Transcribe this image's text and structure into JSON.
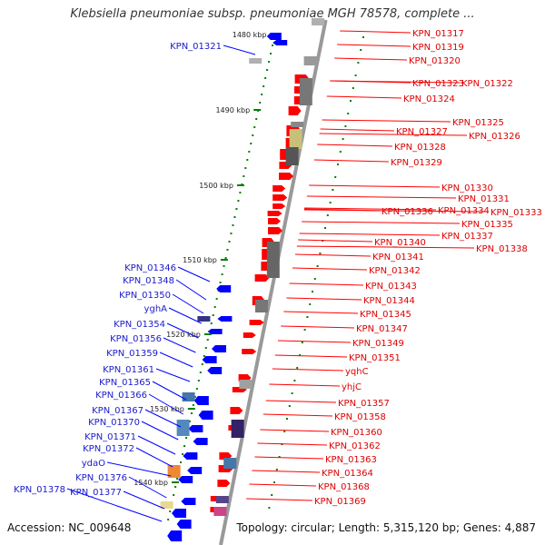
{
  "title": "Klebsiella pneumoniae subsp. pneumoniae MGH 78578, complete ...",
  "footer": {
    "accession": "Accession: NC_009648",
    "summary": "Topology: circular; Length: 5,315,120 bp; Genes: 4,887"
  },
  "colors": {
    "forward": "#ff0000",
    "reverse": "#0000ff",
    "backbone": "#999999",
    "tick": "#008000"
  },
  "scale_ticks": [
    {
      "label": "1480 kbp"
    },
    {
      "label": "1490 kbp"
    },
    {
      "label": "1500 kbp"
    },
    {
      "label": "1510 kbp"
    },
    {
      "label": "1520 kbp"
    },
    {
      "label": "1530 kbp"
    },
    {
      "label": "1540 kbp"
    }
  ],
  "forward_genes": [
    {
      "label": "KPN_01317"
    },
    {
      "label": "KPN_01319"
    },
    {
      "label": "KPN_01320"
    },
    {
      "label": "KPN_01322"
    },
    {
      "label": "KPN_01323"
    },
    {
      "label": "KPN_01324"
    },
    {
      "label": "KPN_01325"
    },
    {
      "label": "KPN_01326"
    },
    {
      "label": "KPN_01327"
    },
    {
      "label": "KPN_01328"
    },
    {
      "label": "KPN_01329"
    },
    {
      "label": "KPN_01330"
    },
    {
      "label": "KPN_01331"
    },
    {
      "label": "KPN_01334"
    },
    {
      "label": "KPN_01333"
    },
    {
      "label": "KPN_01336"
    },
    {
      "label": "KPN_01335"
    },
    {
      "label": "KPN_01337"
    },
    {
      "label": "KPN_01338"
    },
    {
      "label": "KPN_01340"
    },
    {
      "label": "KPN_01341"
    },
    {
      "label": "KPN_01342"
    },
    {
      "label": "KPN_01343"
    },
    {
      "label": "KPN_01344"
    },
    {
      "label": "KPN_01345"
    },
    {
      "label": "KPN_01347"
    },
    {
      "label": "KPN_01349"
    },
    {
      "label": "KPN_01351"
    },
    {
      "label": "yqhC"
    },
    {
      "label": "yhjC"
    },
    {
      "label": "KPN_01357"
    },
    {
      "label": "KPN_01358"
    },
    {
      "label": "KPN_01360"
    },
    {
      "label": "KPN_01362"
    },
    {
      "label": "KPN_01363"
    },
    {
      "label": "KPN_01364"
    },
    {
      "label": "KPN_01368"
    },
    {
      "label": "KPN_01369"
    }
  ],
  "reverse_genes": [
    {
      "label": "KPN_01321"
    },
    {
      "label": "KPN_01346"
    },
    {
      "label": "KPN_01348"
    },
    {
      "label": "KPN_01350"
    },
    {
      "label": "yghA"
    },
    {
      "label": "KPN_01354"
    },
    {
      "label": "KPN_01356"
    },
    {
      "label": "KPN_01359"
    },
    {
      "label": "KPN_01361"
    },
    {
      "label": "KPN_01365"
    },
    {
      "label": "KPN_01366"
    },
    {
      "label": "KPN_01367"
    },
    {
      "label": "KPN_01370"
    },
    {
      "label": "KPN_01371"
    },
    {
      "label": "KPN_01372"
    },
    {
      "label": "ydaO"
    },
    {
      "label": "KPN_01376"
    },
    {
      "label": "KPN_01377"
    },
    {
      "label": "KPN_01378"
    }
  ]
}
